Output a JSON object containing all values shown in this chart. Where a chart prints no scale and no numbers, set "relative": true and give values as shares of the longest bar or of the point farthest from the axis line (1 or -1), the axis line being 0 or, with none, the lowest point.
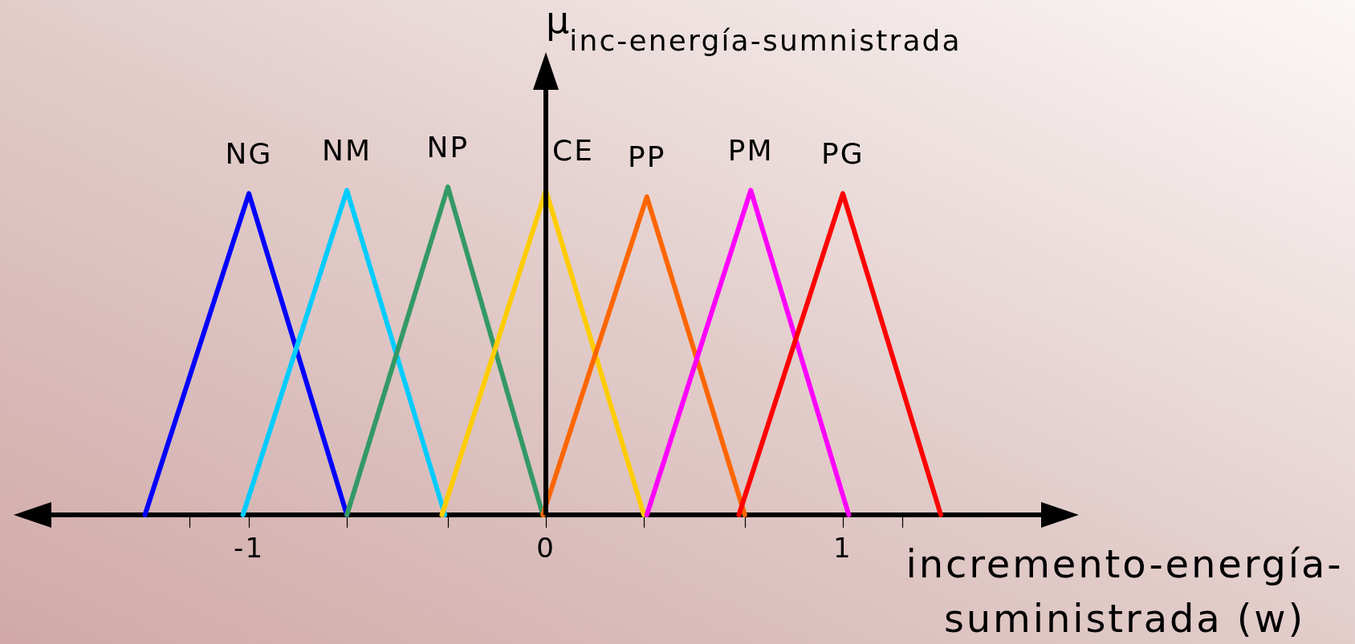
{
  "chart_data": {
    "type": "line",
    "relative": true,
    "xlabel": "incremento-energía-suministrada (w)",
    "ylabel": "μ$_{inc-energía-sumnistrada}$",
    "xlim": [
      -1.73,
      1.73
    ],
    "xticks": [
      {
        "value": -1.2,
        "label": null
      },
      -1,
      {
        "value": -0.67,
        "label": null
      },
      {
        "value": -0.33,
        "label": null
      },
      0,
      {
        "value": 0.33,
        "label": null
      },
      {
        "value": 0.67,
        "label": null
      },
      1,
      {
        "value": 1.2,
        "label": null
      }
    ],
    "grid": false,
    "legend": false,
    "marker": "none",
    "line_style": "solid",
    "ref_lines": [
      {
        "axis": "x",
        "value": 0,
        "label": null,
        "color": "#000000",
        "line_style": "solid"
      }
    ],
    "series": [
      {
        "name": "NG",
        "color": "#0000ff",
        "x": [
          -1.35,
          -1,
          -0.67
        ],
        "values": [
          0,
          0.98,
          0
        ]
      },
      {
        "name": "NM",
        "color": "#00ccff",
        "x": [
          -1.02,
          -0.67,
          -0.34
        ],
        "values": [
          0,
          0.99,
          0
        ]
      },
      {
        "name": "NP",
        "color": "#339966",
        "x": [
          -0.67,
          -0.33,
          -0.01
        ],
        "values": [
          0,
          1,
          0
        ]
      },
      {
        "name": "CE",
        "color": "#ffcc00",
        "x": [
          -0.35,
          0,
          0.33
        ],
        "values": [
          0,
          0.99,
          0
        ]
      },
      {
        "name": "PP",
        "color": "#ff6600",
        "x": [
          -0.01,
          0.34,
          0.67
        ],
        "values": [
          0,
          0.97,
          0
        ]
      },
      {
        "name": "PM",
        "color": "#ff00ff",
        "x": [
          0.34,
          0.69,
          1.02
        ],
        "values": [
          0,
          0.99,
          0
        ]
      },
      {
        "name": "PG",
        "color": "#ff0000",
        "x": [
          0.65,
          1,
          1.33
        ],
        "values": [
          0,
          0.98,
          0
        ]
      }
    ]
  }
}
